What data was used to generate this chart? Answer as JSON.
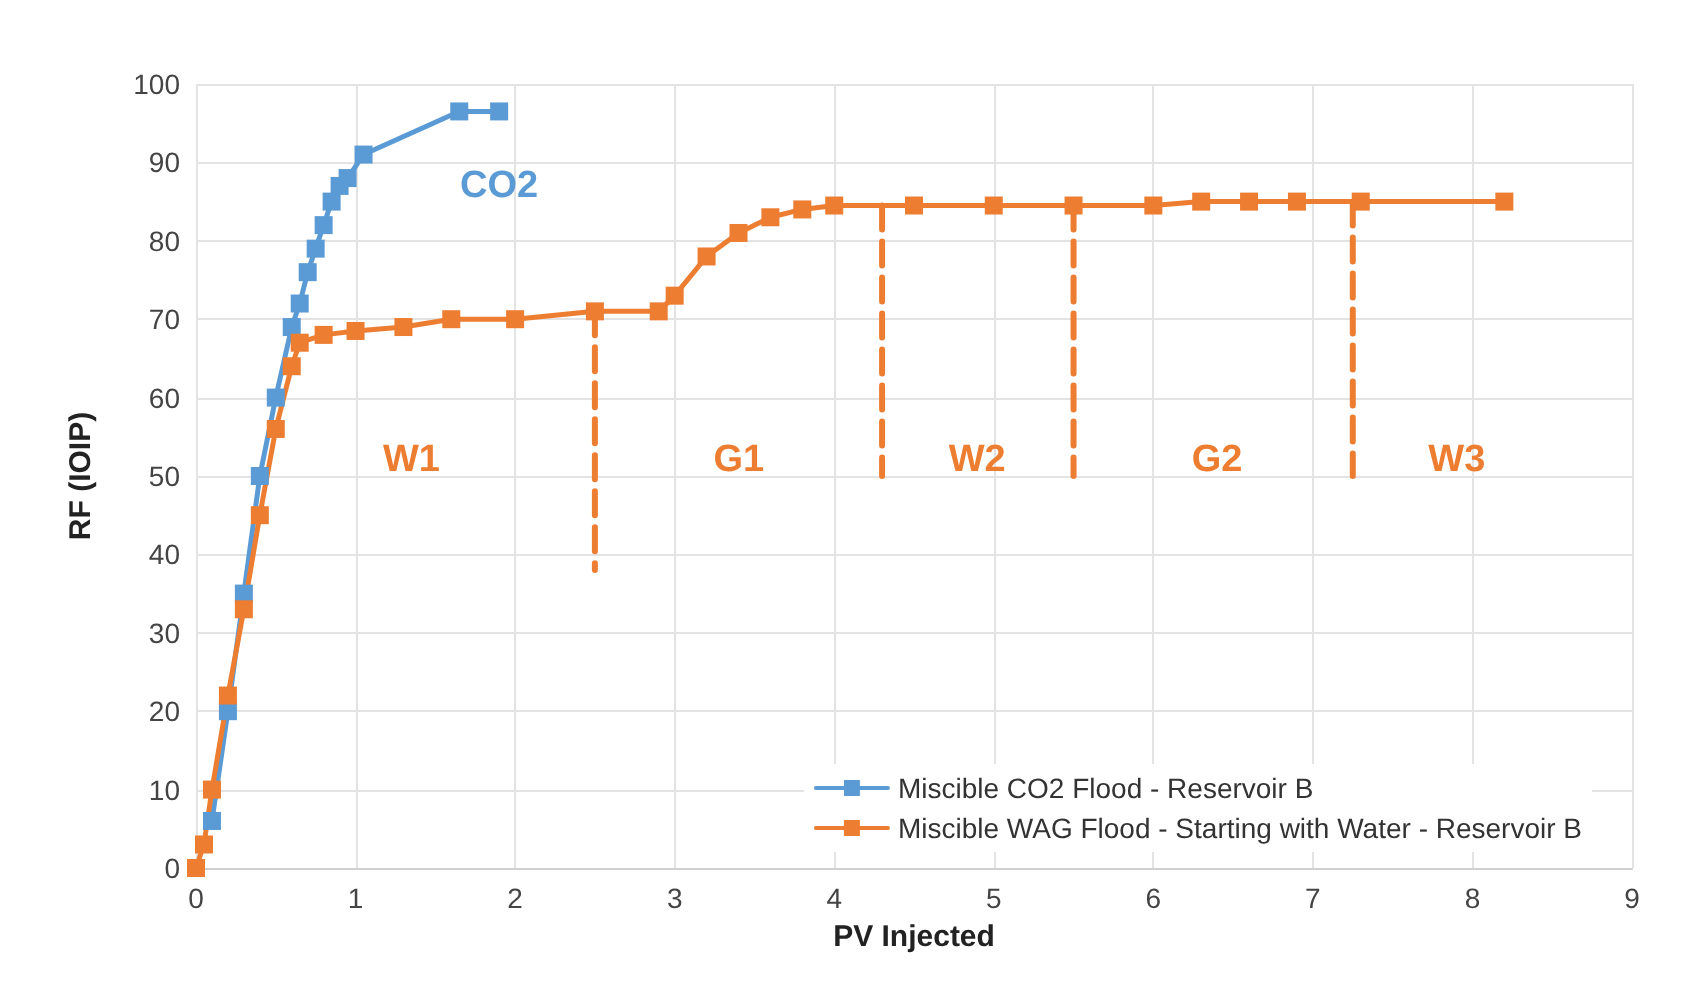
{
  "chart_data": {
    "type": "line",
    "xlabel": "PV Injected",
    "ylabel": "RF (IOIP)",
    "xlim": [
      0,
      9
    ],
    "xticks": [
      0,
      1,
      2,
      3,
      4,
      5,
      6,
      7,
      8,
      9
    ],
    "ylim": [
      0,
      100
    ],
    "yticks": [
      0,
      10,
      20,
      30,
      40,
      50,
      60,
      70,
      80,
      90,
      100
    ],
    "grid": true,
    "legend": "bottom right",
    "marker": "square",
    "line_style": "solid",
    "series": [
      {
        "name": "Miscible CO2 Flood - Reservoir B",
        "color": "#5b9bd5",
        "x": [
          0.1,
          0.2,
          0.3,
          0.4,
          0.5,
          0.6,
          0.65,
          0.7,
          0.75,
          0.8,
          0.85,
          0.9,
          0.95,
          1.05,
          1.65,
          1.9
        ],
        "values": [
          6,
          20,
          35,
          50,
          60,
          69,
          72,
          76,
          79,
          82,
          85,
          87,
          88,
          91,
          96.5,
          96.5
        ]
      },
      {
        "name": "Miscible WAG Flood - Starting with Water - Reservoir B",
        "color": "#ed7d31",
        "x": [
          0,
          0.05,
          0.1,
          0.2,
          0.3,
          0.4,
          0.5,
          0.6,
          0.65,
          0.8,
          1.0,
          1.3,
          1.6,
          2.0,
          2.5,
          2.9,
          3.0,
          3.2,
          3.4,
          3.6,
          3.8,
          4.0,
          4.5,
          5.0,
          5.5,
          6.0,
          6.3,
          6.6,
          6.9,
          7.3,
          8.2
        ],
        "values": [
          0,
          3,
          10,
          22,
          33,
          45,
          56,
          64,
          67,
          68,
          68.5,
          69,
          70,
          70,
          71,
          71,
          73,
          78,
          81,
          83,
          84,
          84.5,
          84.5,
          84.5,
          84.5,
          84.5,
          85,
          85,
          85,
          85,
          85
        ]
      },
      {
        "color": "#ed7d31",
        "line_style": "dashed",
        "marker": "none",
        "x": [
          2.5,
          2.5
        ],
        "values": [
          71,
          38
        ]
      },
      {
        "color": "#ed7d31",
        "line_style": "dashed",
        "marker": "none",
        "x": [
          4.3,
          4.3
        ],
        "values": [
          84.5,
          50
        ]
      },
      {
        "color": "#ed7d31",
        "line_style": "dashed",
        "marker": "none",
        "x": [
          5.5,
          5.5
        ],
        "values": [
          84.5,
          50
        ]
      },
      {
        "color": "#ed7d31",
        "line_style": "dashed",
        "marker": "none",
        "x": [
          7.25,
          7.25
        ],
        "values": [
          85,
          50
        ]
      }
    ],
    "annotations": [
      "CO2",
      "W1",
      "G1",
      "W2",
      "G2",
      "W3"
    ]
  }
}
